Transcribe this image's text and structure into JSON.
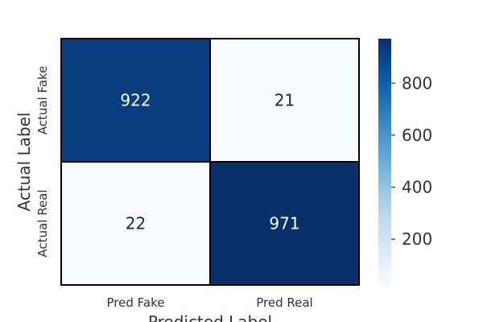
{
  "chart_data": {
    "type": "heatmap",
    "title": "",
    "xlabel": "Predicted Label",
    "ylabel": "Actual Label",
    "x_categories": [
      "Pred Fake",
      "Pred Real"
    ],
    "y_categories": [
      "Actual Fake",
      "Actual Real"
    ],
    "values": [
      [
        922,
        21
      ],
      [
        22,
        971
      ]
    ],
    "colorbar": {
      "min": 21,
      "max": 971,
      "ticks": [
        200,
        400,
        600,
        800
      ],
      "colormap": "Blues"
    },
    "colors": {
      "low": "#f7fbff",
      "high": "#08306b",
      "gridline": "#000000",
      "text_light": "#ffffff",
      "text_dark": "#262626"
    }
  }
}
